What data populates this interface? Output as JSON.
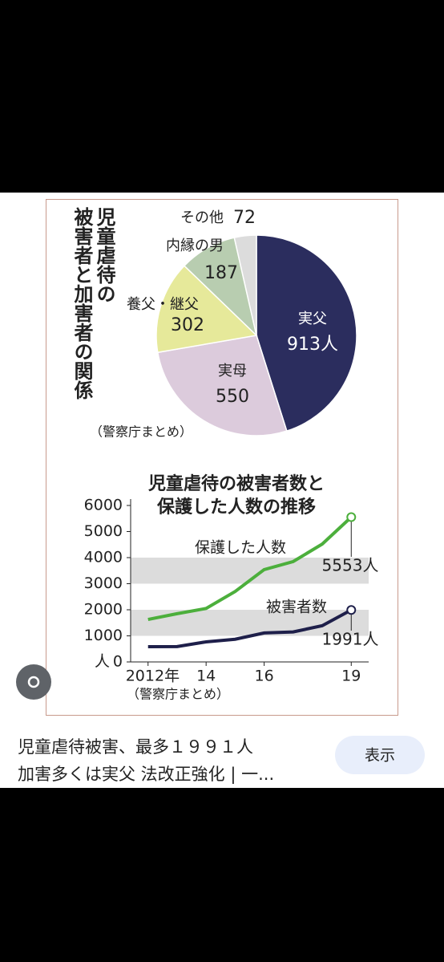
{
  "chart_data": [
    {
      "type": "pie",
      "title_lines": [
        "児童虐待の",
        "被害者と加害者の関係"
      ],
      "source": "（警察庁まとめ）",
      "categories": [
        "実父",
        "実母",
        "養父・継父",
        "内縁の男",
        "その他"
      ],
      "values": [
        913,
        550,
        302,
        187,
        72
      ],
      "value_labels": [
        "913人",
        "550",
        "302",
        "187",
        "72"
      ],
      "colors": [
        "#2b2d5e",
        "#dccbdc",
        "#e6e99a",
        "#b8cdb0",
        "#dcdcdc"
      ]
    },
    {
      "type": "line",
      "title_lines": [
        "児童虐待の被害者数と",
        "保護した人数の推移"
      ],
      "source": "（警察庁まとめ）",
      "y_unit": "人",
      "x": [
        2012,
        2013,
        2014,
        2015,
        2016,
        2017,
        2018,
        2019
      ],
      "xlim": [
        2011.4,
        2019.6
      ],
      "xticks": [
        {
          "value": 2012,
          "label": "2012年"
        },
        {
          "value": 2014,
          "label": "14"
        },
        {
          "value": 2016,
          "label": "16"
        },
        {
          "value": 2019,
          "label": "19"
        }
      ],
      "ylim": [
        0,
        6000
      ],
      "yticks": [
        0,
        1000,
        2000,
        3000,
        4000,
        5000,
        6000
      ],
      "series": [
        {
          "name": "保護した人数",
          "color": "#4caf3c",
          "values": [
            1630,
            1850,
            2050,
            2700,
            3540,
            3850,
            4520,
            5553
          ],
          "end_label": "5553人"
        },
        {
          "name": "被害者数",
          "color": "#1e1f4a",
          "values": [
            585,
            590,
            770,
            870,
            1110,
            1150,
            1390,
            1991
          ],
          "end_label": "1991人"
        }
      ]
    }
  ],
  "caption": [
    "児童虐待被害、最多１９９１人",
    "加害多くは実父 法改正強化 | 一..."
  ],
  "button": "表示"
}
